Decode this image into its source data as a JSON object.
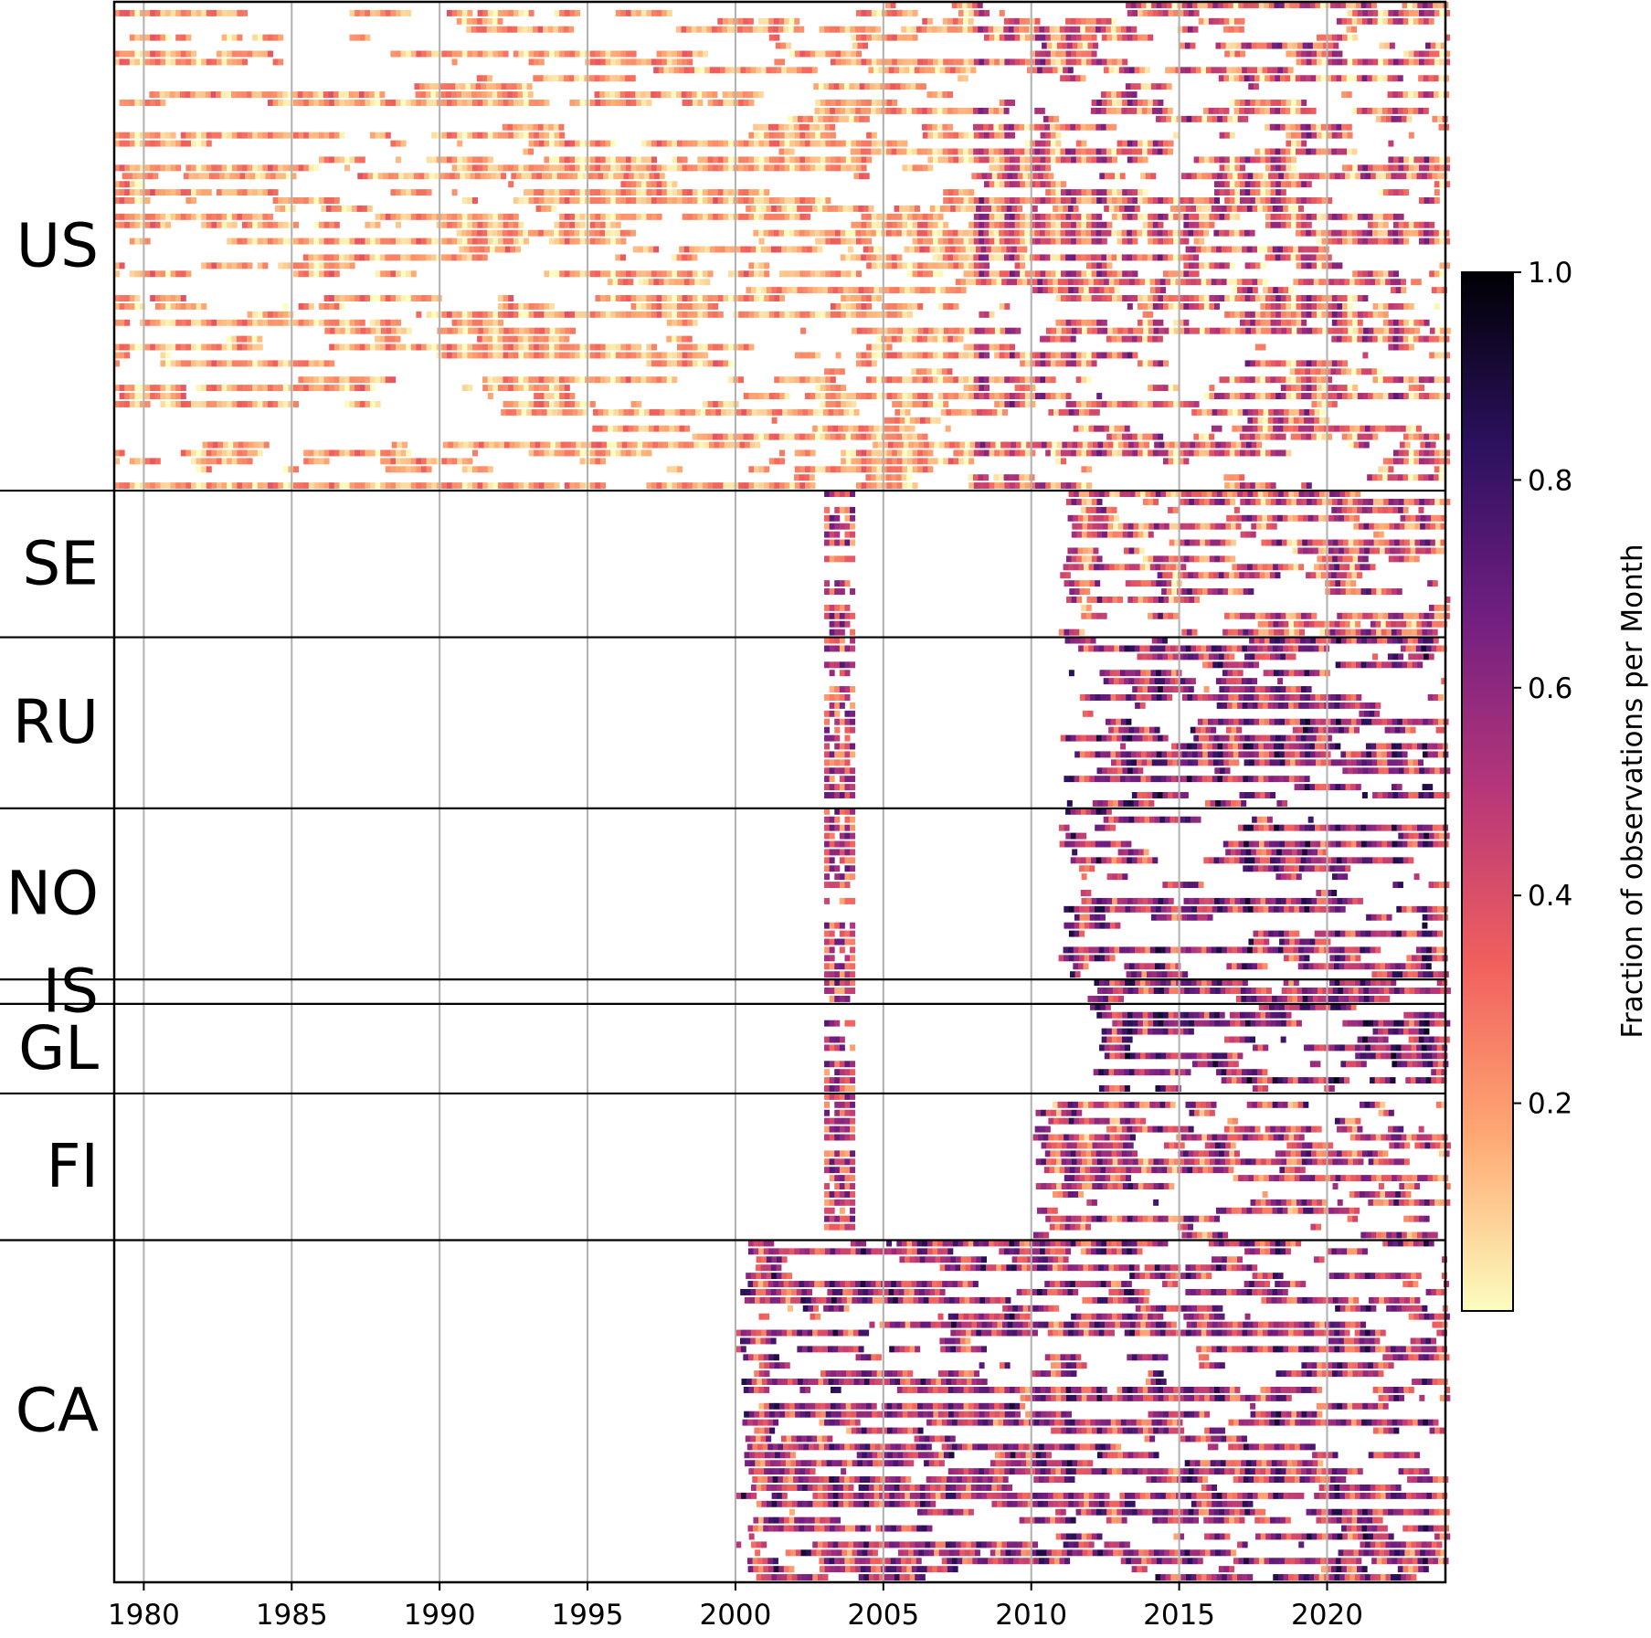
{
  "chart_data": {
    "type": "heatmap",
    "title": "",
    "xlabel": "",
    "ylabel": "",
    "x_ticks": [
      1980,
      1985,
      1990,
      1995,
      2000,
      2005,
      2010,
      2015,
      2020
    ],
    "x_tick_labels": [
      "1980",
      "1985",
      "1990",
      "1995",
      "2000",
      "2005",
      "2010",
      "2015",
      "2020"
    ],
    "xlim": [
      1979.0,
      2024.0
    ],
    "grid": "vertical gridlines at x ticks",
    "colormap": "magma_r",
    "colorbar": {
      "label": "Fraction of observations per Month",
      "range": [
        0.0,
        1.0
      ],
      "ticks": [
        0.2,
        0.4,
        0.6,
        0.8,
        1.0
      ],
      "tick_labels": [
        "0.2",
        "0.4",
        "0.6",
        "0.8",
        "1.0"
      ],
      "colors": [
        "#fcfdbf",
        "#fea973",
        "#f1605d",
        "#b73779",
        "#721f81",
        "#2c115f",
        "#000004"
      ]
    },
    "groups": [
      {
        "name": "US",
        "rows": 60,
        "data_start": 1979.0,
        "fill": 0.62,
        "mean": 0.33
      },
      {
        "name": "SE",
        "rows": 18,
        "data_start": 2010.9,
        "fill": 0.85,
        "mean": 0.38
      },
      {
        "name": "RU",
        "rows": 21,
        "data_start": 2010.9,
        "fill": 0.62,
        "mean": 0.55
      },
      {
        "name": "NO",
        "rows": 21,
        "data_start": 2010.9,
        "fill": 0.9,
        "mean": 0.55
      },
      {
        "name": "IS",
        "rows": 3,
        "data_start": 2011.5,
        "fill": 0.92,
        "mean": 0.55
      },
      {
        "name": "GL",
        "rows": 11,
        "data_start": 2011.8,
        "fill": 0.6,
        "mean": 0.6
      },
      {
        "name": "FI",
        "rows": 18,
        "data_start": 2010.0,
        "fill": 0.92,
        "mean": 0.45
      },
      {
        "name": "CA",
        "rows": 42,
        "data_start": 2000.0,
        "fill": 0.9,
        "mean": 0.52
      }
    ],
    "sparse_column": {
      "x_range": [
        2003.0,
        2004.0
      ],
      "groups": [
        "SE",
        "RU",
        "NO",
        "IS",
        "GL",
        "FI"
      ],
      "mean": 0.45
    }
  }
}
